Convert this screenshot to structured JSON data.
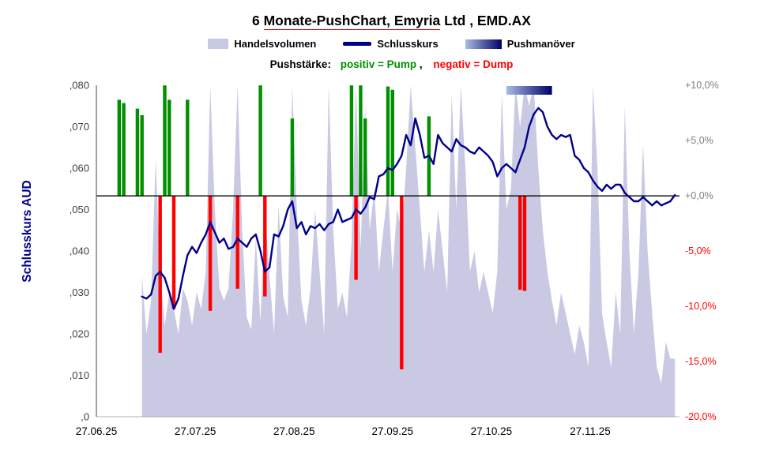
{
  "title": {
    "part1": "6 ",
    "part2": "Monate-PushChart, Emyria",
    "part3": " Ltd , EMD.AX"
  },
  "legend": {
    "volume": "Handelsvolumen",
    "close": "Schlusskurs",
    "push": "Pushmanöver"
  },
  "push_note": {
    "label": "Pushstärke:",
    "positive": "positiv = Pump",
    "separator": ",",
    "negative": "negativ = Dump"
  },
  "y_axis_title": "Schlusskurs AUD",
  "chart_data": {
    "type": "combo: area (volume) + bar (push strength) + line (close)",
    "title": "6 Monate-PushChart, Emyria Ltd , EMD.AX",
    "instrument": "Emyria Ltd , EMD.AX",
    "period": "6 Monate",
    "aud_range": [
      0,
      0.08
    ],
    "pct_range": [
      -20,
      10
    ],
    "zero_line_aud": 0.0533,
    "n_days": 128,
    "left_ticks": [
      ",080",
      ",070",
      ",060",
      ",050",
      ",040",
      ",030",
      ",020",
      ",010",
      ",0"
    ],
    "left_tick_values": [
      0.08,
      0.07,
      0.06,
      0.05,
      0.04,
      0.03,
      0.02,
      0.01,
      0
    ],
    "right_ticks": [
      {
        "label": "+10,0%",
        "value": 10,
        "color": "#7f7f7f"
      },
      {
        "label": "+5,0%",
        "value": 5,
        "color": "#7f7f7f"
      },
      {
        "label": "+0,0%",
        "value": 0,
        "color": "#7f7f7f"
      },
      {
        "label": "-5,0%",
        "value": -5,
        "color": "#ff0000"
      },
      {
        "label": "-10,0%",
        "value": -10,
        "color": "#ff0000"
      },
      {
        "label": "-15,0%",
        "value": -15,
        "color": "#ff0000"
      },
      {
        "label": "-20,0%",
        "value": -20,
        "color": "#ff0000"
      }
    ],
    "x_ticks": [
      {
        "label": "27.06.25",
        "day": 0
      },
      {
        "label": "27.07.25",
        "day": 21.7
      },
      {
        "label": "27.08.25",
        "day": 43.4
      },
      {
        "label": "27.09.25",
        "day": 65
      },
      {
        "label": "27.10.25",
        "day": 86.7
      },
      {
        "label": "27.11.25",
        "day": 108.4
      }
    ],
    "close_series": {
      "name": "Schlusskurs",
      "unit": "AUD",
      "start_day": 10,
      "values": [
        0.029,
        0.0285,
        0.0295,
        0.034,
        0.035,
        0.0335,
        0.03,
        0.026,
        0.0285,
        0.034,
        0.039,
        0.041,
        0.0395,
        0.042,
        0.044,
        0.047,
        0.0445,
        0.042,
        0.043,
        0.0405,
        0.041,
        0.043,
        0.042,
        0.041,
        0.043,
        0.044,
        0.04,
        0.035,
        0.036,
        0.044,
        0.0435,
        0.046,
        0.05,
        0.052,
        0.0455,
        0.047,
        0.044,
        0.046,
        0.0455,
        0.0465,
        0.045,
        0.0465,
        0.047,
        0.05,
        0.047,
        0.0475,
        0.048,
        0.05,
        0.049,
        0.0505,
        0.053,
        0.0525,
        0.058,
        0.0585,
        0.06,
        0.0595,
        0.061,
        0.063,
        0.068,
        0.0655,
        0.072,
        0.068,
        0.0625,
        0.063,
        0.061,
        0.068,
        0.066,
        0.065,
        0.064,
        0.067,
        0.0655,
        0.065,
        0.064,
        0.0635,
        0.065,
        0.064,
        0.063,
        0.0615,
        0.058,
        0.06,
        0.061,
        0.06,
        0.059,
        0.062,
        0.065,
        0.07,
        0.073,
        0.0745,
        0.0735,
        0.07,
        0.068,
        0.067,
        0.068,
        0.0675,
        0.068,
        0.063,
        0.062,
        0.06,
        0.059,
        0.057,
        0.0555,
        0.0545,
        0.056,
        0.055,
        0.056,
        0.056,
        0.054,
        0.053,
        0.052,
        0.052,
        0.053,
        0.052,
        0.051,
        0.052,
        0.051,
        0.0515,
        0.052,
        0.0535
      ]
    },
    "volume_series": {
      "name": "Handelsvolumen",
      "scale_note": "relative height in chart units, volume axis unlabeled",
      "start_day": 10,
      "values": [
        0.034,
        0.02,
        0.028,
        0.062,
        0.035,
        0.022,
        0.03,
        0.026,
        0.02,
        0.031,
        0.028,
        0.022,
        0.03,
        0.026,
        0.035,
        0.08,
        0.05,
        0.031,
        0.028,
        0.031,
        0.05,
        0.08,
        0.045,
        0.024,
        0.021,
        0.043,
        0.023,
        0.05,
        0.034,
        0.02,
        0.051,
        0.029,
        0.024,
        0.08,
        0.05,
        0.028,
        0.022,
        0.031,
        0.05,
        0.035,
        0.02,
        0.08,
        0.045,
        0.026,
        0.03,
        0.024,
        0.042,
        0.08,
        0.04,
        0.075,
        0.045,
        0.055,
        0.035,
        0.045,
        0.055,
        0.035,
        0.05,
        0.045,
        0.06,
        0.08,
        0.065,
        0.05,
        0.035,
        0.045,
        0.035,
        0.05,
        0.04,
        0.03,
        0.078,
        0.05,
        0.08,
        0.06,
        0.035,
        0.04,
        0.03,
        0.035,
        0.03,
        0.025,
        0.035,
        0.078,
        0.05,
        0.055,
        0.08,
        0.07,
        0.08,
        0.075,
        0.08,
        0.06,
        0.045,
        0.035,
        0.028,
        0.022,
        0.03,
        0.025,
        0.02,
        0.015,
        0.022,
        0.018,
        0.012,
        0.08,
        0.06,
        0.025,
        0.018,
        0.012,
        0.03,
        0.02,
        0.075,
        0.04,
        0.02,
        0.035,
        0.066,
        0.04,
        0.025,
        0.012,
        0.008,
        0.018,
        0.014,
        0.014
      ]
    },
    "push_events": [
      {
        "day": 5,
        "pct": 8.7
      },
      {
        "day": 6,
        "pct": 8.4
      },
      {
        "day": 9,
        "pct": 7.9
      },
      {
        "day": 10,
        "pct": 7.3
      },
      {
        "day": 14,
        "pct": -14.2
      },
      {
        "day": 15,
        "pct": 10.0
      },
      {
        "day": 16,
        "pct": 8.7
      },
      {
        "day": 17,
        "pct": -10.2
      },
      {
        "day": 20,
        "pct": 8.7
      },
      {
        "day": 25,
        "pct": -10.4
      },
      {
        "day": 31,
        "pct": -8.4
      },
      {
        "day": 36,
        "pct": 10.0
      },
      {
        "day": 37,
        "pct": -9.1
      },
      {
        "day": 43,
        "pct": 7.0
      },
      {
        "day": 56,
        "pct": 10.0
      },
      {
        "day": 57,
        "pct": -7.6
      },
      {
        "day": 58,
        "pct": 10.0
      },
      {
        "day": 59,
        "pct": 7.0
      },
      {
        "day": 64,
        "pct": 9.9
      },
      {
        "day": 65,
        "pct": 9.6
      },
      {
        "day": 67,
        "pct": -15.7
      },
      {
        "day": 73,
        "pct": 7.2
      },
      {
        "day": 93,
        "pct": -8.5
      },
      {
        "day": 94,
        "pct": -8.6
      }
    ],
    "push_manoeuvre": {
      "start_day": 90,
      "end_day": 100
    },
    "colors": {
      "volume": "#c9c9e3",
      "close": "#00008b",
      "green": "#009000",
      "red": "#ff0000",
      "push_grad_start": "#a9bce4",
      "push_grad_end": "#000066",
      "left_tick": "#404040",
      "x_tick": "#000000",
      "zero_line": "#000000",
      "y_title": "#00008b",
      "title_underline": "#e00000"
    }
  }
}
